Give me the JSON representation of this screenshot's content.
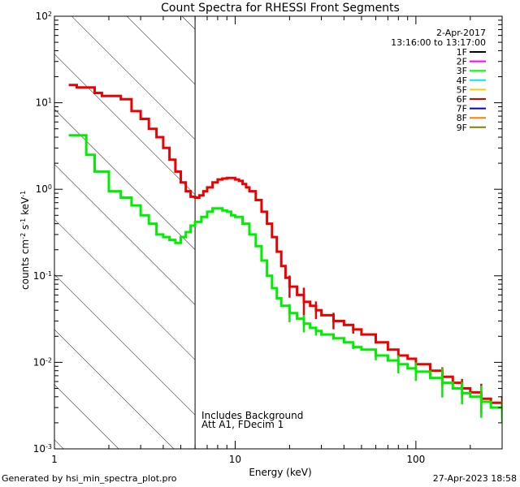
{
  "chart_data": {
    "type": "line",
    "title": "Count Spectra for RHESSI Front Segments",
    "xlabel": "Energy (keV)",
    "ylabel": "counts cm",
    "ylabel_sup1": "-2",
    "ylabel_s": " s",
    "ylabel_sup2": "-1",
    "ylabel_kev": " keV",
    "ylabel_sup3": "-1",
    "xscale": "log",
    "yscale": "log",
    "xlim": [
      1,
      300
    ],
    "ylim": [
      0.001,
      100
    ],
    "x_ticks": [
      {
        "value": 1,
        "label": "1"
      },
      {
        "value": 10,
        "label": "10"
      },
      {
        "value": 100,
        "label": "100"
      }
    ],
    "y_ticks": [
      {
        "value": 0.001,
        "base": "10",
        "exp": "-3"
      },
      {
        "value": 0.01,
        "base": "10",
        "exp": "-2"
      },
      {
        "value": 0.1,
        "base": "10",
        "exp": "-1"
      },
      {
        "value": 1,
        "base": "10",
        "exp": "0"
      },
      {
        "value": 10,
        "base": "10",
        "exp": "1"
      },
      {
        "value": 100,
        "base": "10",
        "exp": "2"
      }
    ],
    "hatched_region_x": [
      1,
      6
    ],
    "vertical_line_x": 6,
    "annotations": {
      "date": "2-Apr-2017",
      "time_range": "13:16:00 to 13:17:00",
      "background_line1": "Includes Background",
      "background_line2": "Att A1, FDecim  1"
    },
    "legend": [
      {
        "label": "1F",
        "color": "#000000"
      },
      {
        "label": "2F",
        "color": "#ff00ff"
      },
      {
        "label": "3F",
        "color": "#00ff00"
      },
      {
        "label": "4F",
        "color": "#00e5ff"
      },
      {
        "label": "5F",
        "color": "#ffcc00"
      },
      {
        "label": "6F",
        "color": "#dd0000"
      },
      {
        "label": "7F",
        "color": "#0000cc"
      },
      {
        "label": "8F",
        "color": "#ff7f00"
      },
      {
        "label": "9F",
        "color": "#808000"
      }
    ],
    "series": [
      {
        "name": "6F",
        "color": "#ee0000",
        "points": [
          [
            1.2,
            16.0
          ],
          [
            1.33,
            15.0
          ],
          [
            1.5,
            15.0
          ],
          [
            1.67,
            13.0
          ],
          [
            1.83,
            12.0
          ],
          [
            2.0,
            12.0
          ],
          [
            2.33,
            11.0
          ],
          [
            2.67,
            8.0
          ],
          [
            3.0,
            6.5
          ],
          [
            3.33,
            5.0
          ],
          [
            3.67,
            4.0
          ],
          [
            4.0,
            3.0
          ],
          [
            4.33,
            2.2
          ],
          [
            4.67,
            1.6
          ],
          [
            5.0,
            1.2
          ],
          [
            5.33,
            0.95
          ],
          [
            5.67,
            0.82
          ],
          [
            6.0,
            0.8
          ],
          [
            6.33,
            0.85
          ],
          [
            6.67,
            0.95
          ],
          [
            7.0,
            1.05
          ],
          [
            7.5,
            1.2
          ],
          [
            8.0,
            1.3
          ],
          [
            8.5,
            1.33
          ],
          [
            9.0,
            1.35
          ],
          [
            9.5,
            1.35
          ],
          [
            10.0,
            1.3
          ],
          [
            10.5,
            1.25
          ],
          [
            11.0,
            1.15
          ],
          [
            11.5,
            1.05
          ],
          [
            12.0,
            0.95
          ],
          [
            13.0,
            0.75
          ],
          [
            14.0,
            0.55
          ],
          [
            15.0,
            0.4
          ],
          [
            16.0,
            0.28
          ],
          [
            17.0,
            0.19
          ],
          [
            18.0,
            0.13
          ],
          [
            19.0,
            0.095
          ],
          [
            20.0,
            0.075
          ],
          [
            22.0,
            0.06
          ],
          [
            24.0,
            0.05
          ],
          [
            26.0,
            0.045
          ],
          [
            28.0,
            0.04
          ],
          [
            30.0,
            0.035
          ],
          [
            35.0,
            0.03
          ],
          [
            40.0,
            0.027
          ],
          [
            45.0,
            0.024
          ],
          [
            50.0,
            0.021
          ],
          [
            60.0,
            0.017
          ],
          [
            70.0,
            0.014
          ],
          [
            80.0,
            0.012
          ],
          [
            90.0,
            0.011
          ],
          [
            100.0,
            0.0095
          ],
          [
            120.0,
            0.008
          ],
          [
            140.0,
            0.0068
          ],
          [
            160.0,
            0.0058
          ],
          [
            180.0,
            0.005
          ],
          [
            200.0,
            0.0045
          ],
          [
            230.0,
            0.0038
          ],
          [
            260.0,
            0.0034
          ],
          [
            300.0,
            0.003
          ]
        ]
      },
      {
        "name": "3F",
        "color": "#00ee00",
        "points": [
          [
            1.2,
            4.2
          ],
          [
            1.33,
            4.2
          ],
          [
            1.5,
            2.5
          ],
          [
            1.67,
            1.6
          ],
          [
            1.83,
            1.6
          ],
          [
            2.0,
            0.95
          ],
          [
            2.33,
            0.8
          ],
          [
            2.67,
            0.65
          ],
          [
            3.0,
            0.5
          ],
          [
            3.33,
            0.4
          ],
          [
            3.67,
            0.3
          ],
          [
            4.0,
            0.28
          ],
          [
            4.33,
            0.26
          ],
          [
            4.67,
            0.24
          ],
          [
            5.0,
            0.28
          ],
          [
            5.33,
            0.32
          ],
          [
            5.67,
            0.38
          ],
          [
            6.0,
            0.42
          ],
          [
            6.5,
            0.48
          ],
          [
            7.0,
            0.55
          ],
          [
            7.5,
            0.6
          ],
          [
            8.0,
            0.6
          ],
          [
            8.5,
            0.57
          ],
          [
            9.0,
            0.55
          ],
          [
            9.5,
            0.5
          ],
          [
            10.0,
            0.48
          ],
          [
            11.0,
            0.4
          ],
          [
            12.0,
            0.3
          ],
          [
            13.0,
            0.22
          ],
          [
            14.0,
            0.15
          ],
          [
            15.0,
            0.1
          ],
          [
            16.0,
            0.072
          ],
          [
            17.0,
            0.055
          ],
          [
            18.0,
            0.045
          ],
          [
            20.0,
            0.037
          ],
          [
            22.0,
            0.032
          ],
          [
            24.0,
            0.028
          ],
          [
            26.0,
            0.025
          ],
          [
            28.0,
            0.023
          ],
          [
            30.0,
            0.021
          ],
          [
            35.0,
            0.019
          ],
          [
            40.0,
            0.017
          ],
          [
            45.0,
            0.015
          ],
          [
            50.0,
            0.014
          ],
          [
            60.0,
            0.012
          ],
          [
            70.0,
            0.0105
          ],
          [
            80.0,
            0.0095
          ],
          [
            90.0,
            0.0085
          ],
          [
            100.0,
            0.0078
          ],
          [
            120.0,
            0.0066
          ],
          [
            140.0,
            0.0058
          ],
          [
            160.0,
            0.005
          ],
          [
            180.0,
            0.0044
          ],
          [
            200.0,
            0.004
          ],
          [
            230.0,
            0.0035
          ],
          [
            260.0,
            0.003
          ],
          [
            300.0,
            0.0027
          ]
        ]
      }
    ]
  },
  "footer": {
    "generator": "Generated by hsi_min_spectra_plot.pro",
    "timestamp": "27-Apr-2023 18:58"
  }
}
